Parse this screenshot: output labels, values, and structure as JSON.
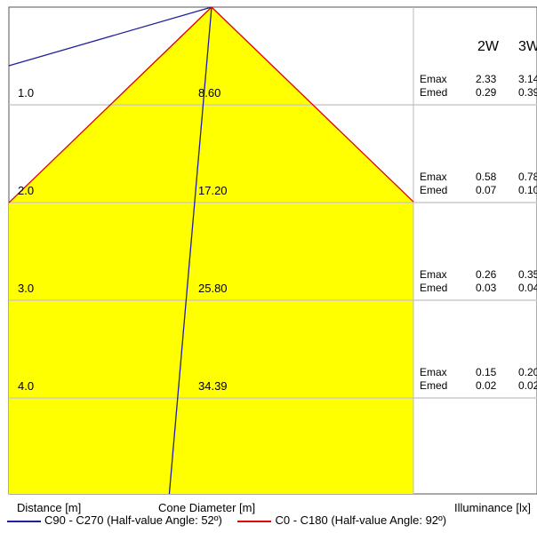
{
  "chart_data": {
    "type": "area",
    "title": "",
    "xlabel": "Cone Diameter [m]",
    "ylabel": "Distance [m]",
    "illuminance_label": "Illuminance [lx]",
    "rows": [
      {
        "distance": "1.0",
        "diameter": "8.60",
        "values": [
          {
            "label": "Emax",
            "w2": "2.33",
            "w3": "3.14"
          },
          {
            "label": "Emed",
            "w2": "0.29",
            "w3": "0.39"
          }
        ]
      },
      {
        "distance": "2.0",
        "diameter": "17.20",
        "values": [
          {
            "label": "Emax",
            "w2": "0.58",
            "w3": "0.78"
          },
          {
            "label": "Emed",
            "w2": "0.07",
            "w3": "0.10"
          }
        ]
      },
      {
        "distance": "3.0",
        "diameter": "25.80",
        "values": [
          {
            "label": "Emax",
            "w2": "0.26",
            "w3": "0.35"
          },
          {
            "label": "Emed",
            "w2": "0.03",
            "w3": "0.04"
          }
        ]
      },
      {
        "distance": "4.0",
        "diameter": "34.39",
        "values": [
          {
            "label": "Emax",
            "w2": "0.15",
            "w3": "0.20"
          },
          {
            "label": "Emed",
            "w2": "0.02",
            "w3": "0.02"
          }
        ]
      }
    ],
    "power_headers": [
      "2W",
      "3W"
    ],
    "series": [
      {
        "name": "C90 - C270 (Half-value Angle: 52º)",
        "half_angle_deg": 52,
        "color": "#1f1f9e"
      },
      {
        "name": "C0 - C180 (Half-value Angle: 92º)",
        "half_angle_deg": 92,
        "color": "#e00000"
      }
    ],
    "fill_color": "#ffff00",
    "grid": true
  }
}
